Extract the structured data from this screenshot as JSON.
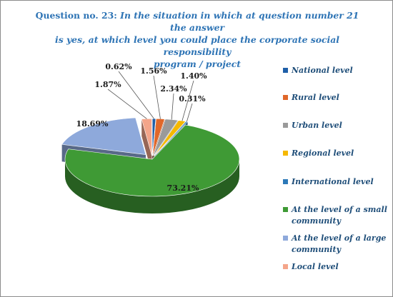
{
  "chart_data": {
    "type": "pie",
    "title_prefix": "Question no. 23:",
    "title_lines": [
      "In the situation in which at question number 21 the answer",
      "is yes, at which level you could place the corporate social responsibility",
      "program / project"
    ],
    "slices": [
      {
        "name": "National level",
        "value": 0.62,
        "label": "0.62%",
        "color": "#1f5fa8"
      },
      {
        "name": "Rural level",
        "value": 1.56,
        "label": "1.56%",
        "color": "#e0672a"
      },
      {
        "name": "Urban level",
        "value": 2.34,
        "label": "2.34%",
        "color": "#9a9a9a"
      },
      {
        "name": "Regional level",
        "value": 1.4,
        "label": "1.40%",
        "color": "#f5b800"
      },
      {
        "name": "International level",
        "value": 0.31,
        "label": "0.31%",
        "color": "#2d79b8"
      },
      {
        "name": "At the level of a small community",
        "value": 73.21,
        "label": "73.21%",
        "color": "#3f9a35"
      },
      {
        "name": "At the level of a large community",
        "value": 18.69,
        "label": "18.69%",
        "color": "#8ea9db"
      },
      {
        "name": "Local level",
        "value": 1.87,
        "label": "1.87%",
        "color": "#f4a58a"
      }
    ],
    "legend_lines": [
      [
        "National level"
      ],
      [
        "Rural level"
      ],
      [
        "Urban level"
      ],
      [
        "Regional level"
      ],
      [
        "International level"
      ],
      [
        "At the level of a small",
        "community"
      ],
      [
        "At the level of a large",
        "community"
      ],
      [
        "Local level"
      ]
    ],
    "legend_position": "right"
  }
}
